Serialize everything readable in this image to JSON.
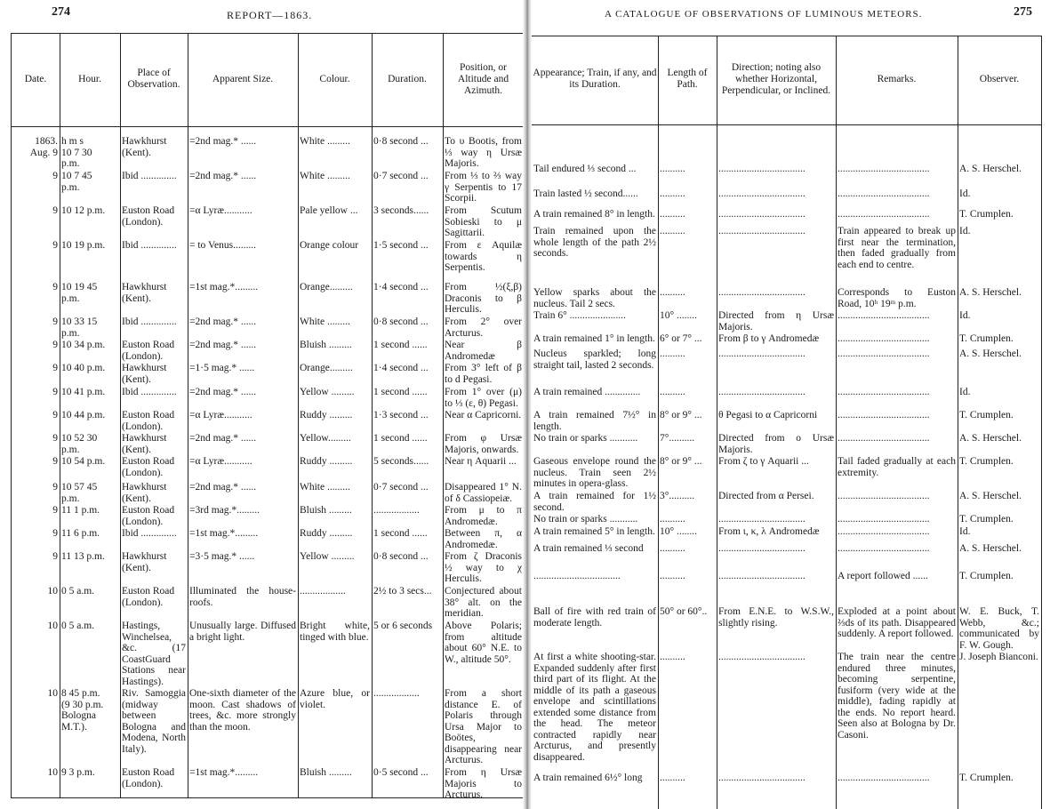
{
  "left_page": {
    "page_number": "274",
    "running_head": "REPORT—1863.",
    "headers": [
      "Date.",
      "Hour.",
      "Place of Observation.",
      "Apparent Size.",
      "Colour.",
      "Duration.",
      "Position, or Altitude and Azimuth."
    ]
  },
  "right_page": {
    "page_number": "275",
    "running_head": "A CATALOGUE OF OBSERVATIONS OF LUMINOUS METEORS.",
    "headers": [
      "Appearance; Train, if any, and its Duration.",
      "Length of Path.",
      "Direction; noting also whether Horizontal, Perpendicular, or Inclined.",
      "Remarks.",
      "Observer."
    ]
  },
  "rows": [
    {
      "left": [
        "1863.\nAug. 9",
        "h  m  s\n10  7 30\n   p.m.",
        "Hawkhurst\n    (Kent).",
        "=2nd mag.* ......",
        "White .........",
        "0·8 second ...",
        "To υ Bootis, from ⅓ way η Ursæ Majoris."
      ],
      "right": [
        "Tail endured ⅓ second ...",
        "..........",
        "..................................",
        "....................................",
        "A. S. Herschel."
      ]
    },
    {
      "left": [
        "9",
        "10  7 45\n   p.m.",
        "Ibid ..............",
        "=2nd mag.* ......",
        "White .........",
        "0·7 second ...",
        "From ⅓ to ⅔ way γ Serpentis to 17 Scorpii."
      ],
      "right": [
        "Train lasted ½ second......",
        "..........",
        "..................................",
        "....................................",
        "Id."
      ]
    },
    {
      "left": [
        "9",
        "10 12  p.m.",
        "Euston Road\n    (London).",
        "=α Lyræ...........",
        "Pale yellow ...",
        "3 seconds......",
        "From Scutum Sobieski to μ Sagittarii."
      ],
      "right": [
        "A train remained 8° in length.",
        "..........",
        "..................................",
        "....................................",
        "T. Crumplen."
      ]
    },
    {
      "left": [
        "9",
        "10 19  p.m.",
        "Ibid ..............",
        "= to Venus.........",
        "Orange colour",
        "1·5 second ...",
        "From ε Aquilæ towards η Serpentis."
      ],
      "right": [
        "Train remained upon the whole length of the path 2½ seconds.",
        "..........",
        "..................................",
        "Train appeared to break up first near the termination, then faded gradually from each end to centre.",
        "Id."
      ]
    },
    {
      "left": [
        "9",
        "10 19 45\n   p.m.",
        "Hawkhurst\n    (Kent).",
        "=1st mag.*.........",
        "Orange.........",
        "1·4 second ...",
        "From ½(ξ,β) Draconis to β Herculis."
      ],
      "right": [
        "Yellow sparks about the nucleus. Tail 2 secs.",
        "..........",
        "..................................",
        "Corresponds to Euston Road, 10ʰ 19ᵐ p.m.",
        "A. S. Herschel."
      ]
    },
    {
      "left": [
        "9",
        "10 33 15\n   p.m.",
        "Ibid ..............",
        "=2nd mag.* ......",
        "White .........",
        "0·8 second ...",
        "From 2° over Arcturus."
      ],
      "right": [
        "Train 6° ......................",
        "10° ........",
        "Directed from η Ursæ Majoris.",
        "....................................",
        "Id."
      ]
    },
    {
      "left": [
        "9",
        "10 34  p.m.",
        "Euston Road\n    (London).",
        "=2nd mag.* ......",
        "Bluish .........",
        "1 second ......",
        "Near β Andromedæ"
      ],
      "right": [
        "A train remained 1° in length.",
        "6° or 7° ...",
        "From β to γ Andromedæ",
        "....................................",
        "T. Crumplen."
      ]
    },
    {
      "left": [
        "9",
        "10 40  p.m.",
        "Hawkhurst\n    (Kent).",
        "=1·5 mag.* ......",
        "Orange.........",
        "1·4 second ...",
        "From 3° left of β to d Pegasi."
      ],
      "right": [
        "Nucleus sparkled; long straight tail, lasted 2 seconds.",
        "..........",
        "..................................",
        "....................................",
        "A. S. Herschel."
      ]
    },
    {
      "left": [
        "9",
        "10 41  p.m.",
        "Ibid ..............",
        "=2nd mag.* ......",
        "Yellow .........",
        "1 second ......",
        "From 1° over (μ) to ⅓ (ε, θ) Pegasi."
      ],
      "right": [
        "A train remained ..............",
        "..........",
        "..................................",
        "....................................",
        "Id."
      ]
    },
    {
      "left": [
        "9",
        "10 44  p.m.",
        "Euston Road\n    (London).",
        "=α Lyræ...........",
        "Ruddy .........",
        "1·3 second ...",
        "Near α Capricorni."
      ],
      "right": [
        "A train remained 7½° in length.",
        "8° or 9° ...",
        "θ Pegasi to α Capricorni",
        "....................................",
        "T. Crumplen."
      ]
    },
    {
      "left": [
        "9",
        "10 52 30\n   p.m.",
        "Hawkhurst\n    (Kent).",
        "=2nd mag.* ......",
        "Yellow.........",
        "1 second ......",
        "From φ Ursæ Majoris, onwards."
      ],
      "right": [
        "No train or sparks ...........",
        "7°..........",
        "Directed from ο Ursæ Majoris.",
        "....................................",
        "A. S. Herschel."
      ]
    },
    {
      "left": [
        "9",
        "10 54  p.m.",
        "Euston Road\n    (London).",
        "=α Lyræ...........",
        "Ruddy .........",
        "5 seconds......",
        "Near η Aquarii ..."
      ],
      "right": [
        "Gaseous envelope round the nucleus. Train seen 2½ minutes in opera-glass.",
        "8° or 9° ...",
        "From ζ to γ Aquarii ...",
        "Tail faded gradually at each extremity.",
        "T. Crumplen."
      ]
    },
    {
      "left": [
        "9",
        "10 57 45\n   p.m.",
        "Hawkhurst\n    (Kent).",
        "=2nd mag.* ......",
        "White .........",
        "0·7 second ...",
        "Disappeared 1° N. of δ Cassiopeiæ."
      ],
      "right": [
        "A train remained for 1½ second.",
        "3°..........",
        "Directed from α Persei.",
        "....................................",
        "A. S. Herschel."
      ]
    },
    {
      "left": [
        "9",
        "11  1  p.m.",
        "Euston Road\n    (London).",
        "=3rd mag.*.........",
        "Bluish .........",
        "..................",
        "From μ to π Andromedæ."
      ],
      "right": [
        "No train or sparks ...........",
        "..........",
        "..................................",
        "....................................",
        "T. Crumplen."
      ]
    },
    {
      "left": [
        "9",
        "11  6  p.m.",
        "Ibid ..............",
        "=1st mag.*.........",
        "Ruddy .........",
        "1 second ......",
        "Between π, α Andromedæ."
      ],
      "right": [
        "A train remained 5° in length.",
        "10° ........",
        "From ι, κ, λ Andromedæ",
        "....................................",
        "Id."
      ]
    },
    {
      "left": [
        "9",
        "11 13  p.m.",
        "Hawkhurst\n    (Kent).",
        "=3·5 mag.* ......",
        "Yellow .........",
        "0·8 second ...",
        "From ζ Draconis ½ way to χ Herculis."
      ],
      "right": [
        "A train remained ⅓ second",
        "..........",
        "..................................",
        "....................................",
        "A. S. Herschel."
      ]
    },
    {
      "left": [
        "10",
        " 0  5  a.m.",
        "Euston Road\n    (London).",
        "Illuminated the house-roofs.",
        "..................",
        "2½ to 3 secs...",
        "Conjectured about 38° alt. on the meridian."
      ],
      "right": [
        "..................................",
        "..........",
        "..................................",
        "A report followed ......",
        "T. Crumplen."
      ]
    },
    {
      "left": [
        "10",
        " 0  5  a.m.",
        "Hastings, Winchelsea, &c. (17 CoastGuard Stations near Hastings).",
        "Unusually large. Diffused a bright light.",
        "Bright white, tinged with blue.",
        "5 or 6 seconds",
        "Above Polaris; from altitude about 60° N.E. to W., altitude 50°."
      ],
      "right": [
        "Ball of fire with red train of moderate length.",
        "50° or 60°..",
        "From E.N.E. to W.S.W., slightly rising.",
        "Exploded at a point about ⅔ds of its path. Disappeared suddenly. A report followed.",
        "W. E. Buck, T. Webb, &c.; communicated by F. W. Gough."
      ]
    },
    {
      "left": [
        "10",
        " 8 45 p.m.\n(9 30 p.m.\nBologna\nM.T.).",
        "Riv. Samoggia (midway between Bologna and Modena, North Italy).",
        "One-sixth diameter of the moon. Cast shadows of trees, &c. more strongly than the moon.",
        "Azure blue, or violet.",
        "..................",
        "From a short distance E. of Polaris through Ursa Major to Boötes, disappearing near Arcturus."
      ],
      "right": [
        "At first a white shooting-star. Expanded suddenly after first third part of its flight. At the middle of its path a gaseous envelope and scintillations extended some distance from the head. The meteor contracted rapidly near Arcturus, and presently disappeared.",
        "..........",
        "..................................",
        "The train near the centre endured three minutes, becoming serpentine, fusiform (very wide at the middle), fading rapidly at the ends. No report heard. Seen also at Bologna by Dr. Casoni.",
        "J. Joseph Bianconi."
      ]
    },
    {
      "left": [
        "10",
        " 9  3  p.m.",
        "Euston Road\n    (London).",
        "=1st mag.*.........",
        "Bluish .........",
        "0·5 second ...",
        "From η Ursæ Majoris to Arcturus."
      ],
      "right": [
        "A train remained 6½° long",
        "..........",
        "..................................",
        "....................................",
        "T. Crumplen."
      ]
    }
  ]
}
